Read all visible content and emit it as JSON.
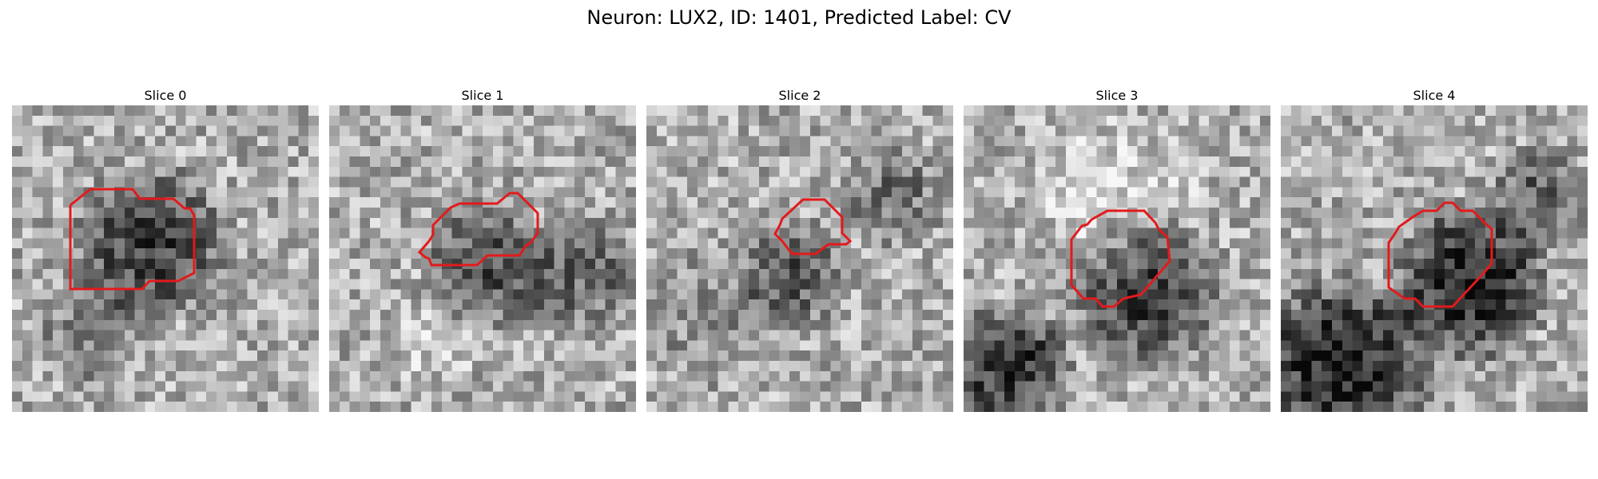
{
  "figure": {
    "title": "Neuron: LUX2, ID: 1401, Predicted Label: CV"
  },
  "panels": [
    {
      "title": "Slice 0"
    },
    {
      "title": "Slice 1"
    },
    {
      "title": "Slice 2"
    },
    {
      "title": "Slice 3"
    },
    {
      "title": "Slice 4"
    }
  ],
  "colors": {
    "contour": "#e31a1c",
    "background": "#ffffff"
  }
}
